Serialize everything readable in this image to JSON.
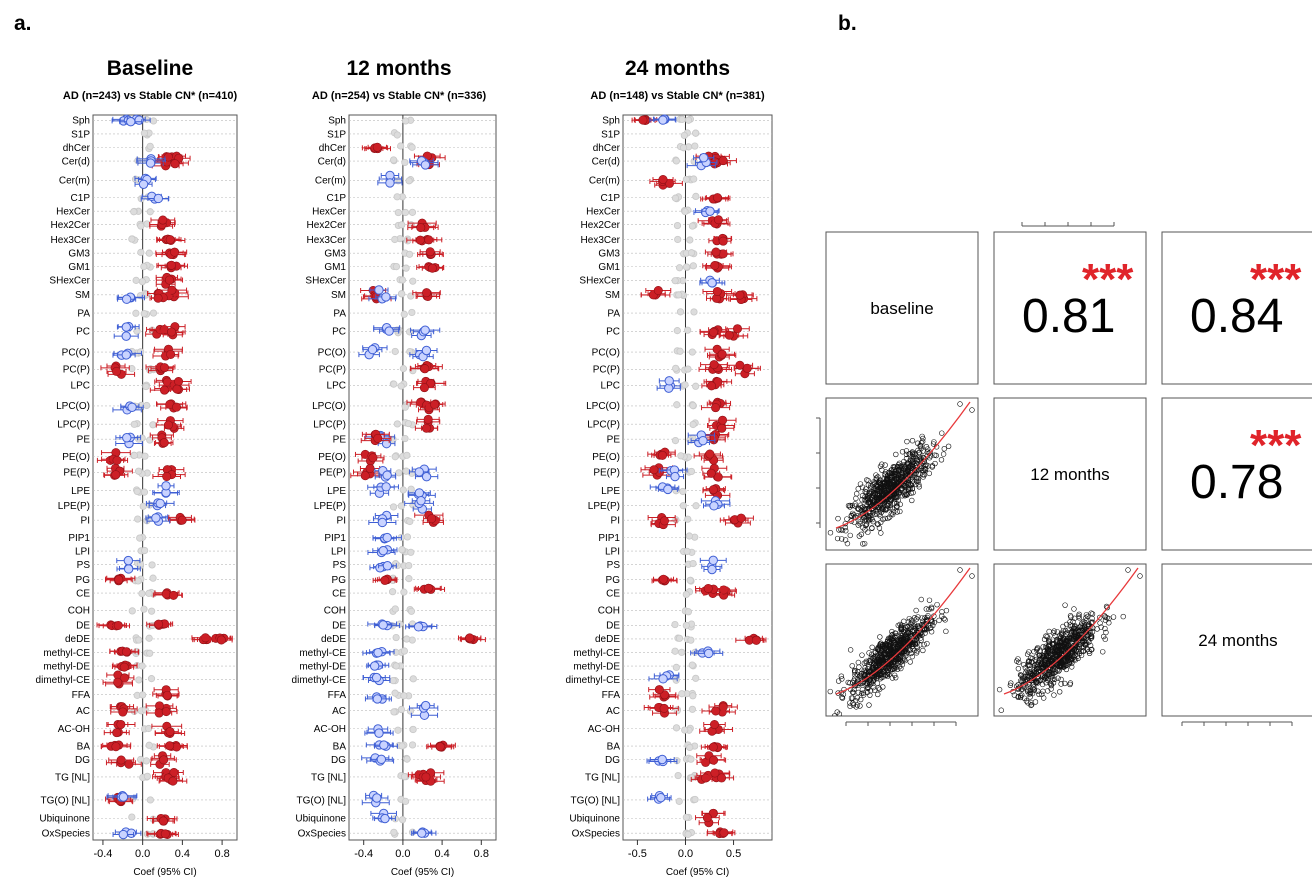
{
  "panel_labels": {
    "a": "a.",
    "b": "b."
  },
  "chart_data": [
    {
      "type": "scatter",
      "subtype": "forest-plot",
      "title": "Baseline",
      "subtitle": "AD (n=243) vs Stable CN* (n=410)",
      "xlabel": "Coef (95% CI)",
      "xticks": [
        "-0.4",
        "0.0",
        "0.4",
        "0.8"
      ],
      "xlim": [
        -0.5,
        0.95
      ],
      "categories": [
        "Sph",
        "S1P",
        "dhCer",
        "Cer(d)",
        "Cer(m)",
        "C1P",
        "HexCer",
        "Hex2Cer",
        "Hex3Cer",
        "GM3",
        "GM1",
        "SHexCer",
        "SM",
        "PA",
        "PC",
        "PC(O)",
        "PC(P)",
        "LPC",
        "LPC(O)",
        "LPC(P)",
        "PE",
        "PE(O)",
        "PE(P)",
        "LPE",
        "LPE(P)",
        "PI",
        "PIP1",
        "LPI",
        "PS",
        "PG",
        "CE",
        "COH",
        "DE",
        "deDE",
        "methyl-CE",
        "methyl-DE",
        "dimethyl-CE",
        "FFA",
        "AC",
        "AC-OH",
        "BA",
        "DG",
        "TG [NL]",
        "TG(O) [NL]",
        "Ubiquinone",
        "OxSpecies"
      ],
      "series": [],
      "points": [
        [
          0,
          -0.18,
          "b"
        ],
        [
          0,
          -0.08,
          "g"
        ],
        [
          3,
          0.22,
          "r"
        ],
        [
          3,
          0.28,
          "r"
        ],
        [
          3,
          0.12,
          "b"
        ],
        [
          3,
          0.35,
          "r"
        ],
        [
          4,
          0.05,
          "g"
        ],
        [
          5,
          0.12,
          "b"
        ],
        [
          7,
          0.2,
          "r"
        ],
        [
          8,
          0.25,
          "r"
        ],
        [
          9,
          0.28,
          "r"
        ],
        [
          10,
          0.32,
          "r"
        ],
        [
          11,
          0.25,
          "r"
        ],
        [
          12,
          0.3,
          "r"
        ],
        [
          12,
          -0.12,
          "b"
        ],
        [
          12,
          0.2,
          "r"
        ],
        [
          14,
          -0.15,
          "b"
        ],
        [
          14,
          0.18,
          "r"
        ],
        [
          14,
          0.32,
          "r"
        ],
        [
          15,
          -0.18,
          "b"
        ],
        [
          15,
          0.25,
          "r"
        ],
        [
          16,
          -0.25,
          "r"
        ],
        [
          16,
          0.2,
          "r"
        ],
        [
          17,
          0.22,
          "r"
        ],
        [
          17,
          0.32,
          "r"
        ],
        [
          18,
          0.3,
          "r"
        ],
        [
          18,
          -0.15,
          "b"
        ],
        [
          19,
          0.28,
          "r"
        ],
        [
          20,
          0.2,
          "r"
        ],
        [
          20,
          -0.15,
          "b"
        ],
        [
          21,
          -0.3,
          "r"
        ],
        [
          22,
          -0.25,
          "r"
        ],
        [
          22,
          0.25,
          "r"
        ],
        [
          23,
          0.2,
          "b"
        ],
        [
          24,
          0.15,
          "b"
        ],
        [
          25,
          0.42,
          "r"
        ],
        [
          25,
          0.15,
          "b"
        ],
        [
          28,
          -0.15,
          "b"
        ],
        [
          29,
          -0.2,
          "r"
        ],
        [
          30,
          0.28,
          "r"
        ],
        [
          32,
          -0.28,
          "r"
        ],
        [
          32,
          0.2,
          "r"
        ],
        [
          33,
          0.65,
          "r"
        ],
        [
          33,
          0.78,
          "r"
        ],
        [
          34,
          -0.2,
          "r"
        ],
        [
          35,
          -0.2,
          "r"
        ],
        [
          36,
          -0.22,
          "r"
        ],
        [
          37,
          0.22,
          "r"
        ],
        [
          38,
          0.2,
          "r"
        ],
        [
          38,
          -0.18,
          "r"
        ],
        [
          39,
          -0.22,
          "r"
        ],
        [
          39,
          0.25,
          "r"
        ],
        [
          40,
          -0.28,
          "r"
        ],
        [
          40,
          0.3,
          "r"
        ],
        [
          41,
          -0.18,
          "r"
        ],
        [
          41,
          0.2,
          "r"
        ],
        [
          42,
          0.22,
          "r"
        ],
        [
          42,
          0.3,
          "r"
        ],
        [
          43,
          -0.25,
          "r"
        ],
        [
          43,
          -0.2,
          "b"
        ],
        [
          44,
          0.2,
          "r"
        ],
        [
          45,
          -0.15,
          "b"
        ],
        [
          45,
          0.22,
          "r"
        ]
      ]
    },
    {
      "type": "scatter",
      "subtype": "forest-plot",
      "title": "12 months",
      "subtitle": "AD (n=254) vs Stable CN* (n=336)",
      "xlabel": "Coef (95% CI)",
      "xticks": [
        "-0.4",
        "0.0",
        "0.4",
        "0.8"
      ],
      "xlim": [
        -0.55,
        0.95
      ],
      "categories": [
        "Sph",
        "S1P",
        "dhCer",
        "Cer(d)",
        "Cer(m)",
        "C1P",
        "HexCer",
        "Hex2Cer",
        "Hex3Cer",
        "GM3",
        "GM1",
        "SHexCer",
        "SM",
        "PA",
        "PC",
        "PC(O)",
        "PC(P)",
        "LPC",
        "LPC(O)",
        "LPC(P)",
        "PE",
        "PE(O)",
        "PE(P)",
        "LPE",
        "LPE(P)",
        "PI",
        "PIP1",
        "LPI",
        "PS",
        "PG",
        "CE",
        "COH",
        "DE",
        "deDE",
        "methyl-CE",
        "methyl-DE",
        "dimethyl-CE",
        "FFA",
        "AC",
        "AC-OH",
        "BA",
        "DG",
        "TG [NL]",
        "TG(O) [NL]",
        "Ubiquinone",
        "OxSpecies"
      ],
      "series": [],
      "points": [
        [
          2,
          -0.25,
          "r"
        ],
        [
          3,
          0.25,
          "r"
        ],
        [
          3,
          0.2,
          "b"
        ],
        [
          4,
          -0.15,
          "b"
        ],
        [
          7,
          0.2,
          "r"
        ],
        [
          8,
          0.22,
          "r"
        ],
        [
          9,
          0.3,
          "r"
        ],
        [
          10,
          0.3,
          "r"
        ],
        [
          12,
          -0.3,
          "r"
        ],
        [
          12,
          0.25,
          "r"
        ],
        [
          12,
          -0.2,
          "b"
        ],
        [
          14,
          -0.15,
          "b"
        ],
        [
          14,
          0.2,
          "b"
        ],
        [
          15,
          -0.3,
          "b"
        ],
        [
          15,
          0.2,
          "b"
        ],
        [
          16,
          0.25,
          "r"
        ],
        [
          17,
          0.25,
          "r"
        ],
        [
          18,
          0.22,
          "r"
        ],
        [
          18,
          0.3,
          "r"
        ],
        [
          19,
          0.25,
          "r"
        ],
        [
          20,
          -0.2,
          "b"
        ],
        [
          20,
          -0.3,
          "r"
        ],
        [
          21,
          -0.35,
          "r"
        ],
        [
          22,
          -0.35,
          "r"
        ],
        [
          22,
          -0.2,
          "b"
        ],
        [
          22,
          0.2,
          "b"
        ],
        [
          23,
          -0.2,
          "b"
        ],
        [
          23,
          0.2,
          "b"
        ],
        [
          24,
          0.2,
          "b"
        ],
        [
          25,
          0.3,
          "r"
        ],
        [
          25,
          -0.2,
          "b"
        ],
        [
          26,
          -0.2,
          "b"
        ],
        [
          27,
          -0.2,
          "b"
        ],
        [
          28,
          -0.2,
          "b"
        ],
        [
          29,
          -0.2,
          "r"
        ],
        [
          30,
          0.25,
          "r"
        ],
        [
          32,
          -0.2,
          "b"
        ],
        [
          32,
          0.2,
          "b"
        ],
        [
          33,
          0.72,
          "r"
        ],
        [
          34,
          -0.25,
          "b"
        ],
        [
          35,
          -0.25,
          "b"
        ],
        [
          36,
          -0.25,
          "b"
        ],
        [
          37,
          -0.25,
          "b"
        ],
        [
          38,
          0.2,
          "b"
        ],
        [
          39,
          -0.25,
          "b"
        ],
        [
          40,
          0.38,
          "r"
        ],
        [
          40,
          -0.2,
          "b"
        ],
        [
          41,
          -0.25,
          "b"
        ],
        [
          42,
          0.2,
          "r"
        ],
        [
          42,
          0.25,
          "r"
        ],
        [
          43,
          -0.3,
          "b"
        ],
        [
          44,
          -0.2,
          "b"
        ],
        [
          45,
          0.2,
          "b"
        ]
      ]
    },
    {
      "type": "scatter",
      "subtype": "forest-plot",
      "title": "24 months",
      "subtitle": "AD (n=148) vs Stable CN* (n=381)",
      "xlabel": "Coef (95% CI)",
      "xticks": [
        "-0.5",
        "0.0",
        "0.5"
      ],
      "xlim": [
        -0.65,
        0.9
      ],
      "categories": [
        "Sph",
        "S1P",
        "dhCer",
        "Cer(d)",
        "Cer(m)",
        "C1P",
        "HexCer",
        "Hex2Cer",
        "Hex3Cer",
        "GM3",
        "GM1",
        "SHexCer",
        "SM",
        "PA",
        "PC",
        "PC(O)",
        "PC(P)",
        "LPC",
        "LPC(O)",
        "LPC(P)",
        "PE",
        "PE(O)",
        "PE(P)",
        "LPE",
        "LPE(P)",
        "PI",
        "PIP1",
        "LPI",
        "PS",
        "PG",
        "CE",
        "COH",
        "DE",
        "deDE",
        "methyl-CE",
        "methyl-DE",
        "dimethyl-CE",
        "FFA",
        "AC",
        "AC-OH",
        "BA",
        "DG",
        "TG [NL]",
        "TG(O) [NL]",
        "Ubiquinone",
        "OxSpecies"
      ],
      "series": [],
      "points": [
        [
          0,
          -0.4,
          "r"
        ],
        [
          0,
          -0.25,
          "b"
        ],
        [
          3,
          0.28,
          "r"
        ],
        [
          3,
          0.35,
          "r"
        ],
        [
          3,
          0.2,
          "b"
        ],
        [
          4,
          -0.2,
          "r"
        ],
        [
          5,
          0.3,
          "r"
        ],
        [
          6,
          0.25,
          "b"
        ],
        [
          7,
          0.3,
          "r"
        ],
        [
          8,
          0.35,
          "r"
        ],
        [
          9,
          0.35,
          "r"
        ],
        [
          10,
          0.3,
          "r"
        ],
        [
          11,
          0.25,
          "b"
        ],
        [
          12,
          0.35,
          "r"
        ],
        [
          12,
          -0.3,
          "r"
        ],
        [
          12,
          0.6,
          "r"
        ],
        [
          14,
          0.3,
          "r"
        ],
        [
          14,
          0.5,
          "r"
        ],
        [
          15,
          0.35,
          "r"
        ],
        [
          16,
          0.3,
          "r"
        ],
        [
          16,
          0.6,
          "r"
        ],
        [
          17,
          0.3,
          "r"
        ],
        [
          17,
          -0.2,
          "b"
        ],
        [
          18,
          0.35,
          "r"
        ],
        [
          19,
          0.35,
          "r"
        ],
        [
          20,
          0.3,
          "r"
        ],
        [
          20,
          0.15,
          "b"
        ],
        [
          21,
          -0.25,
          "r"
        ],
        [
          21,
          0.25,
          "r"
        ],
        [
          22,
          -0.3,
          "r"
        ],
        [
          22,
          0.3,
          "r"
        ],
        [
          22,
          -0.15,
          "b"
        ],
        [
          23,
          -0.2,
          "b"
        ],
        [
          23,
          0.3,
          "r"
        ],
        [
          24,
          0.3,
          "b"
        ],
        [
          25,
          -0.25,
          "r"
        ],
        [
          25,
          0.55,
          "r"
        ],
        [
          28,
          0.25,
          "b"
        ],
        [
          29,
          -0.2,
          "r"
        ],
        [
          30,
          0.4,
          "r"
        ],
        [
          30,
          0.25,
          "r"
        ],
        [
          33,
          0.7,
          "r"
        ],
        [
          34,
          0.2,
          "b"
        ],
        [
          36,
          -0.2,
          "b"
        ],
        [
          37,
          -0.25,
          "r"
        ],
        [
          38,
          0.35,
          "r"
        ],
        [
          38,
          -0.25,
          "r"
        ],
        [
          39,
          0.3,
          "r"
        ],
        [
          40,
          0.3,
          "r"
        ],
        [
          41,
          0.25,
          "r"
        ],
        [
          41,
          -0.25,
          "b"
        ],
        [
          42,
          0.2,
          "r"
        ],
        [
          42,
          0.35,
          "r"
        ],
        [
          43,
          -0.25,
          "b"
        ],
        [
          44,
          0.25,
          "r"
        ],
        [
          45,
          0.4,
          "r"
        ]
      ]
    },
    {
      "type": "scatter",
      "subtype": "pairs-matrix",
      "diagonal_labels": [
        "baseline",
        "12 months",
        "24 months"
      ],
      "correlations": [
        {
          "row": 0,
          "col": 1,
          "value": "0.81",
          "stars": "***"
        },
        {
          "row": 0,
          "col": 2,
          "value": "0.84",
          "stars": "***"
        },
        {
          "row": 1,
          "col": 2,
          "value": "0.78",
          "stars": "***"
        }
      ],
      "scatter_cells": [
        {
          "row": 1,
          "col": 0,
          "n_points": 700,
          "correlation": 0.81,
          "fit": "lowess"
        },
        {
          "row": 2,
          "col": 0,
          "n_points": 700,
          "correlation": 0.84,
          "fit": "lowess"
        },
        {
          "row": 2,
          "col": 1,
          "n_points": 700,
          "correlation": 0.78,
          "fit": "lowess"
        }
      ]
    }
  ],
  "colors": {
    "significant_positive": "#cc1f26",
    "nominal": "#3f5fd4",
    "nonsignificant": "#c8c8c8",
    "stars": "#e0242a",
    "fit_line": "#e8393b"
  }
}
